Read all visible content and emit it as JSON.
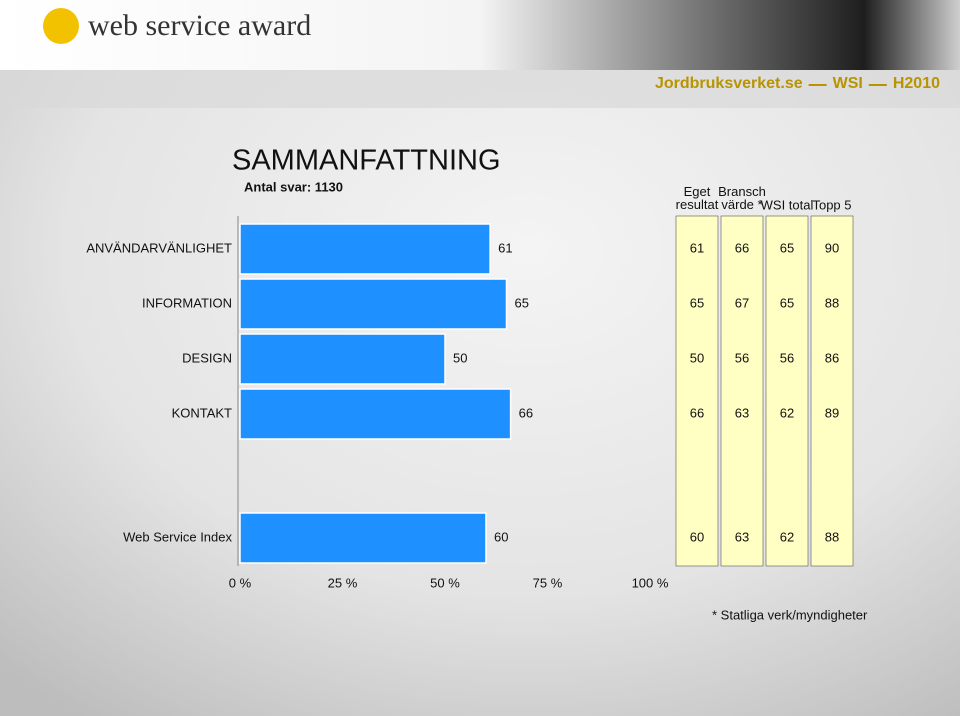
{
  "header": {
    "logo": "web service award",
    "tags": [
      "Jordbruksverket.se",
      "WSI",
      "H2010"
    ]
  },
  "chart_data": {
    "type": "bar",
    "orientation": "horizontal",
    "title": "SAMMANFATTNING",
    "subtitle": "Antal svar: 1130",
    "categories": [
      "ANVÄNDARVÄNLIGHET",
      "INFORMATION",
      "DESIGN",
      "KONTAKT",
      "Web Service Index"
    ],
    "series": [
      {
        "name": "Eget resultat",
        "color": "#1e90ff",
        "values": [
          61,
          65,
          50,
          66,
          60
        ]
      },
      {
        "name": "Bransch värde *",
        "values": [
          66,
          67,
          56,
          63,
          63
        ]
      },
      {
        "name": "WSI total",
        "values": [
          65,
          65,
          56,
          62,
          62
        ]
      },
      {
        "name": "Topp 5",
        "values": [
          90,
          88,
          86,
          89,
          88
        ]
      }
    ],
    "table_color": "#ffffc4",
    "xlim": [
      0,
      100
    ],
    "xticks": [
      {
        "value": 0,
        "label": "0 %"
      },
      {
        "value": 25,
        "label": "25 %"
      },
      {
        "value": 50,
        "label": "50 %"
      },
      {
        "value": 75,
        "label": "75 %"
      },
      {
        "value": 100,
        "label": "100 %"
      }
    ],
    "footnote": "*  Statliga verk/myndigheter"
  }
}
